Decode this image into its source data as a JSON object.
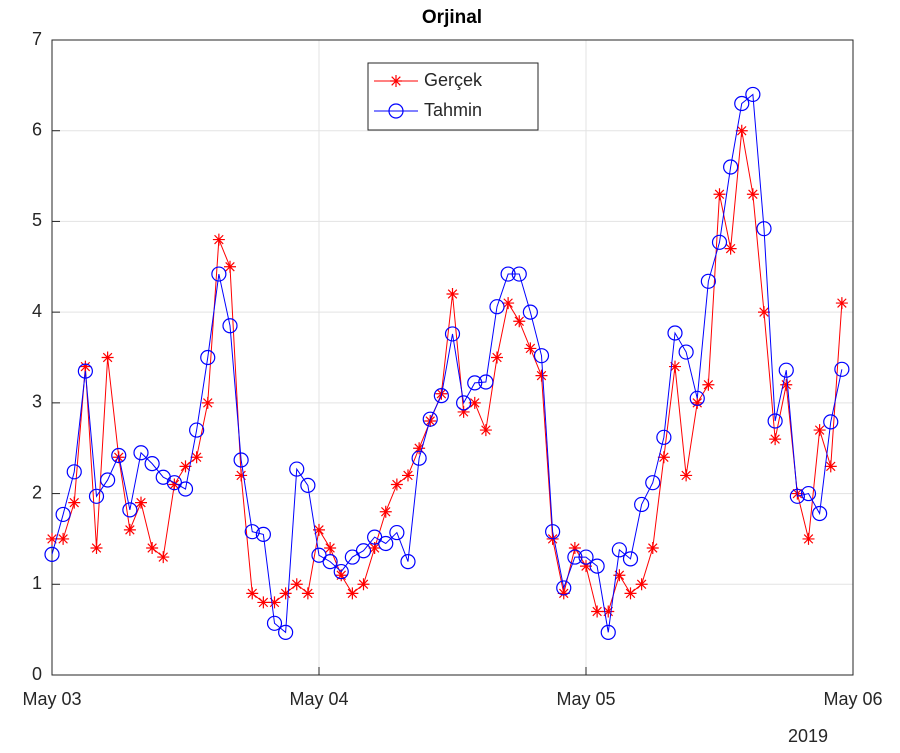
{
  "chart_data": {
    "type": "line",
    "title": "Orjinal",
    "x": [
      0,
      1,
      2,
      3,
      4,
      5,
      6,
      7,
      8,
      9,
      10,
      11,
      12,
      13,
      14,
      15,
      16,
      17,
      18,
      19,
      20,
      21,
      22,
      23,
      24,
      25,
      26,
      27,
      28,
      29,
      30,
      31,
      32,
      33,
      34,
      35,
      36,
      37,
      38,
      39,
      40,
      41,
      42,
      43,
      44,
      45,
      46,
      47,
      48,
      49,
      50,
      51,
      52,
      53,
      54,
      55,
      56,
      57,
      58,
      59,
      60,
      61,
      62,
      63,
      64,
      65,
      66,
      67,
      68,
      69,
      70,
      71
    ],
    "series": [
      {
        "name": "Gerçek",
        "color": "#ff0000",
        "marker": "asterisk",
        "values": [
          1.5,
          1.5,
          1.9,
          3.4,
          1.4,
          3.5,
          2.4,
          1.6,
          1.9,
          1.4,
          1.3,
          2.1,
          2.3,
          2.4,
          3.0,
          4.8,
          4.5,
          2.2,
          0.9,
          0.8,
          0.8,
          0.9,
          1.0,
          0.9,
          1.6,
          1.4,
          1.1,
          0.9,
          1.0,
          1.4,
          1.8,
          2.1,
          2.2,
          2.5,
          2.8,
          3.1,
          4.2,
          2.9,
          3.0,
          2.7,
          3.5,
          4.1,
          3.9,
          3.6,
          3.3,
          1.5,
          0.9,
          1.4,
          1.2,
          0.7,
          0.7,
          1.1,
          0.9,
          1.0,
          1.4,
          2.4,
          3.4,
          2.2,
          3.0,
          3.2,
          5.3,
          4.7,
          6.0,
          5.3,
          4.0,
          2.6,
          3.2,
          2.0,
          1.5,
          2.7,
          2.3,
          4.1
        ]
      },
      {
        "name": "Tahmin",
        "color": "#0000ff",
        "marker": "circle",
        "values": [
          1.33,
          1.77,
          2.24,
          3.35,
          1.97,
          2.15,
          2.42,
          1.82,
          2.45,
          2.33,
          2.18,
          2.12,
          2.05,
          2.7,
          3.5,
          4.42,
          3.85,
          2.37,
          1.58,
          1.55,
          0.57,
          0.47,
          2.27,
          2.09,
          1.32,
          1.25,
          1.14,
          1.3,
          1.37,
          1.52,
          1.45,
          1.57,
          1.25,
          2.39,
          2.82,
          3.08,
          3.76,
          3.0,
          3.22,
          3.23,
          4.06,
          4.42,
          4.42,
          4.0,
          3.52,
          1.58,
          0.96,
          1.3,
          1.3,
          1.2,
          0.47,
          1.38,
          1.28,
          1.88,
          2.12,
          2.62,
          3.77,
          3.56,
          3.05,
          4.34,
          4.77,
          5.6,
          6.3,
          6.4,
          4.92,
          2.8,
          3.36,
          1.97,
          2.0,
          1.78,
          2.79,
          3.37
        ]
      }
    ],
    "xlim": [
      0,
      72
    ],
    "xticks": [
      {
        "value": 0,
        "label": "May 03"
      },
      {
        "value": 24,
        "label": "May 04"
      },
      {
        "value": 48,
        "label": "May 05"
      },
      {
        "value": 72,
        "label": "May 06"
      }
    ],
    "x_annotation": "2019",
    "ylim": [
      0,
      7
    ],
    "yticks": [
      0,
      1,
      2,
      3,
      4,
      5,
      6,
      7
    ],
    "grid": true,
    "legend": "north"
  }
}
